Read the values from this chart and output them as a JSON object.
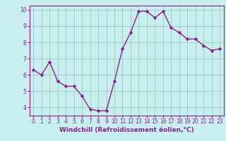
{
  "x": [
    0,
    1,
    2,
    3,
    4,
    5,
    6,
    7,
    8,
    9,
    10,
    11,
    12,
    13,
    14,
    15,
    16,
    17,
    18,
    19,
    20,
    21,
    22,
    23
  ],
  "y": [
    6.3,
    6.0,
    6.8,
    5.6,
    5.3,
    5.3,
    4.7,
    3.9,
    3.8,
    3.8,
    5.6,
    7.6,
    8.6,
    9.9,
    9.9,
    9.5,
    9.9,
    8.9,
    8.6,
    8.2,
    8.2,
    7.8,
    7.5,
    7.6
  ],
  "line_color": "#882288",
  "marker_color": "#882288",
  "bg_color": "#c8eef0",
  "grid_color": "#99ccbb",
  "xlabel": "Windchill (Refroidissement éolien,°C)",
  "xlabel_color": "#882288",
  "xtick_color": "#882288",
  "ytick_color": "#882288",
  "ylim": [
    3.5,
    10.25
  ],
  "xlim": [
    -0.5,
    23.5
  ],
  "yticks": [
    4,
    5,
    6,
    7,
    8,
    9,
    10
  ],
  "xticks": [
    0,
    1,
    2,
    3,
    4,
    5,
    6,
    7,
    8,
    9,
    10,
    11,
    12,
    13,
    14,
    15,
    16,
    17,
    18,
    19,
    20,
    21,
    22,
    23
  ],
  "linewidth": 1.0,
  "markersize": 2.5,
  "border_color": "#882288",
  "tick_fontsize": 5.5,
  "xlabel_fontsize": 6.5
}
